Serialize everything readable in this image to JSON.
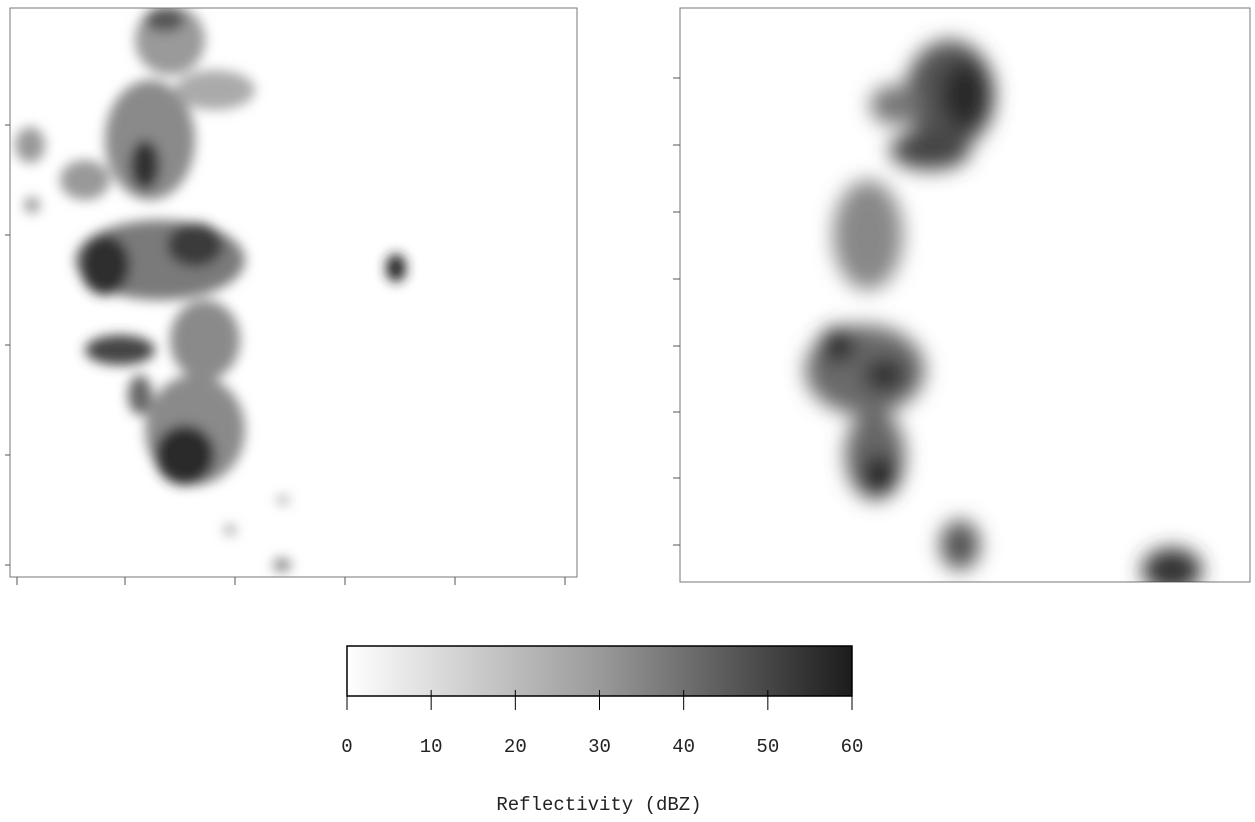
{
  "chart_data": {
    "type": "colorbar",
    "label": "Reflectivity (dBZ)",
    "clim": [
      0,
      60
    ],
    "ticks": [
      0,
      10,
      20,
      30,
      40,
      50,
      60
    ],
    "colormap": [
      "#ffffff",
      "#9a9a9a",
      "#1c1c1c"
    ]
  }
}
